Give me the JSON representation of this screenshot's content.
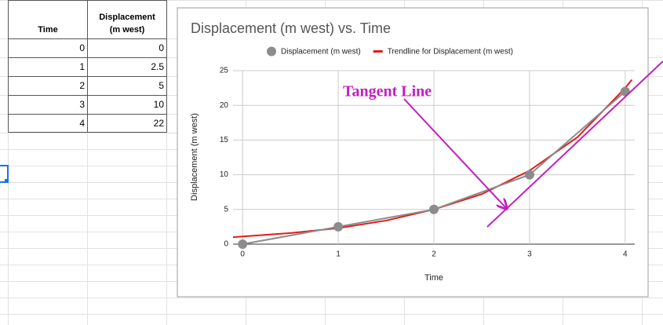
{
  "table": {
    "header": [
      "Time",
      "Displacement (m west)"
    ],
    "rows": [
      [
        0,
        0
      ],
      [
        1,
        2.5
      ],
      [
        2,
        5
      ],
      [
        3,
        10
      ],
      [
        4,
        22
      ]
    ]
  },
  "chart_data": {
    "type": "scatter",
    "title": "Displacement (m west) vs. Time",
    "x_label": "Time",
    "y_label": "Displacement (m west)",
    "xlim": [
      -0.1,
      4.1
    ],
    "xticks": [
      0,
      1,
      2,
      3,
      4
    ],
    "ylim": [
      0,
      25
    ],
    "yticks": [
      0,
      5,
      10,
      15,
      20,
      25
    ],
    "grid": true,
    "series": [
      {
        "name": "Displacement (m west)",
        "color": "#8c8c8c",
        "x": [
          0,
          1,
          2,
          3,
          4
        ],
        "values": [
          0,
          2.5,
          5,
          10,
          22
        ]
      },
      {
        "name": "Trendline for Displacement (m west)",
        "color": "#e31b1b",
        "trendline": true,
        "x": [
          -0.1,
          0,
          0.5,
          1,
          1.5,
          2,
          2.5,
          3,
          3.5,
          4,
          4.07
        ],
        "values": [
          1.0,
          1.1,
          1.6,
          2.3,
          3.4,
          5.0,
          7.2,
          10.6,
          15.4,
          22.5,
          23.7
        ]
      }
    ],
    "annotation": "Tangent Line"
  }
}
